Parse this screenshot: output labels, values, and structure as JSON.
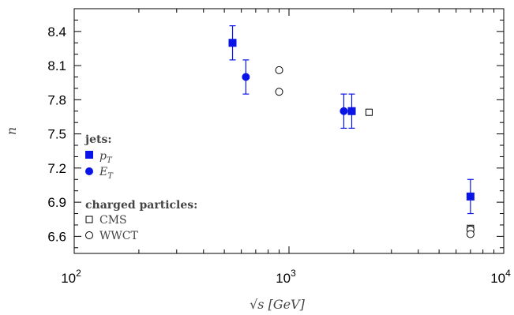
{
  "chart_data": {
    "type": "scatter",
    "xlabel": "√s [GeV]",
    "ylabel": "n",
    "x_scale": "log",
    "xlim": [
      100,
      10000
    ],
    "ylim": [
      6.45,
      8.6
    ],
    "x_ticks": [
      100,
      1000,
      10000
    ],
    "x_tick_labels": [
      {
        "base": "10",
        "exp": "2"
      },
      {
        "base": "10",
        "exp": "3"
      },
      {
        "base": "10",
        "exp": "4"
      }
    ],
    "y_ticks": [
      6.6,
      6.9,
      7.2,
      7.5,
      7.8,
      8.1,
      8.4
    ],
    "y_tick_labels": [
      "6.6",
      "6.9",
      "7.2",
      "7.5",
      "7.8",
      "8.1",
      "8.4"
    ],
    "grid": false,
    "legend_position": "left",
    "legend": {
      "group1_title": "jets:",
      "group2_title": "charged particles:"
    },
    "series": [
      {
        "name": "p_T",
        "legend_label": "p",
        "legend_sub": "T",
        "marker": "filled-square",
        "color": "#0a14e6",
        "points": [
          {
            "x": 546,
            "y": 8.3,
            "err": 0.15
          },
          {
            "x": 1960,
            "y": 7.7,
            "err": 0.15
          },
          {
            "x": 7000,
            "y": 6.95,
            "err": 0.15
          }
        ]
      },
      {
        "name": "E_T",
        "legend_label": "E",
        "legend_sub": "T",
        "marker": "filled-circle",
        "color": "#0a14e6",
        "points": [
          {
            "x": 630,
            "y": 8.0,
            "err": 0.15
          },
          {
            "x": 1800,
            "y": 7.7,
            "err": 0.15
          }
        ]
      },
      {
        "name": "CMS",
        "legend_label": "CMS",
        "marker": "open-square",
        "color": "#000000",
        "points": [
          {
            "x": 2360,
            "y": 7.69
          },
          {
            "x": 7000,
            "y": 6.67
          }
        ]
      },
      {
        "name": "WWCT",
        "legend_label": "WWCT",
        "marker": "open-circle",
        "color": "#000000",
        "points": [
          {
            "x": 900,
            "y": 8.06
          },
          {
            "x": 900,
            "y": 7.87
          },
          {
            "x": 7000,
            "y": 6.66
          },
          {
            "x": 7000,
            "y": 6.62
          }
        ]
      }
    ]
  }
}
